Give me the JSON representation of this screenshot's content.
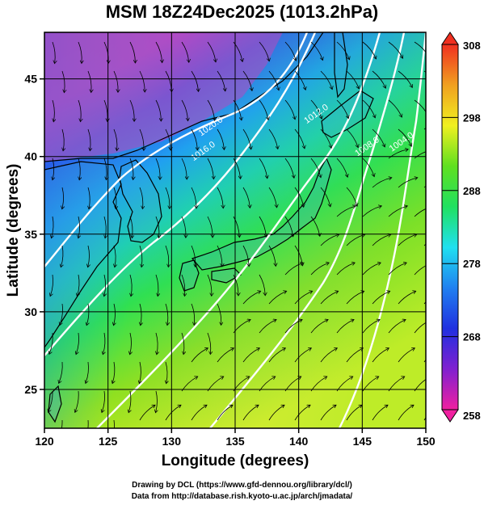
{
  "title": "MSM 18Z24Dec2025 (1013.2hPa)",
  "x_axis": {
    "label": "Longitude (degrees)",
    "range": [
      120,
      150
    ],
    "ticks": [
      "120",
      "125",
      "130",
      "135",
      "140",
      "145",
      "150"
    ]
  },
  "y_axis": {
    "label": "Latitude  (degrees)",
    "range": [
      22.5,
      48
    ],
    "ticks": [
      "25",
      "30",
      "35",
      "40",
      "45"
    ]
  },
  "colorbar": {
    "range": [
      258,
      308
    ],
    "tick_values": [
      258,
      268,
      278,
      288,
      298,
      308
    ],
    "ticks": [
      "258",
      "268",
      "278",
      "288",
      "298",
      "308"
    ],
    "colors": [
      "#f020a0",
      "#8020d0",
      "#2030e0",
      "#2080f0",
      "#20e0f0",
      "#20e060",
      "#60e020",
      "#f0f020",
      "#f0a020",
      "#f03020"
    ]
  },
  "isobars": [
    {
      "label": "1020.0",
      "lon": 133.2,
      "lat": 41.8
    },
    {
      "label": "1016.0",
      "lon": 132.6,
      "lat": 40.2
    },
    {
      "label": "1012.0",
      "lon": 141.5,
      "lat": 42.6
    },
    {
      "label": "1008.0",
      "lon": 145.5,
      "lat": 40.5
    },
    {
      "label": "1004.0",
      "lon": 148.2,
      "lat": 40.8
    }
  ],
  "credits": [
    "Drawing by DCL (https://www.gfd-dennou.org/library/dcl/)",
    "Data from http://database.rish.kyoto-u.ac.jp/arch/jmadata/"
  ],
  "colors": {
    "frame": "#000000",
    "isobar": "#ffffff",
    "streamline": "#000000",
    "coast": "#000000"
  }
}
